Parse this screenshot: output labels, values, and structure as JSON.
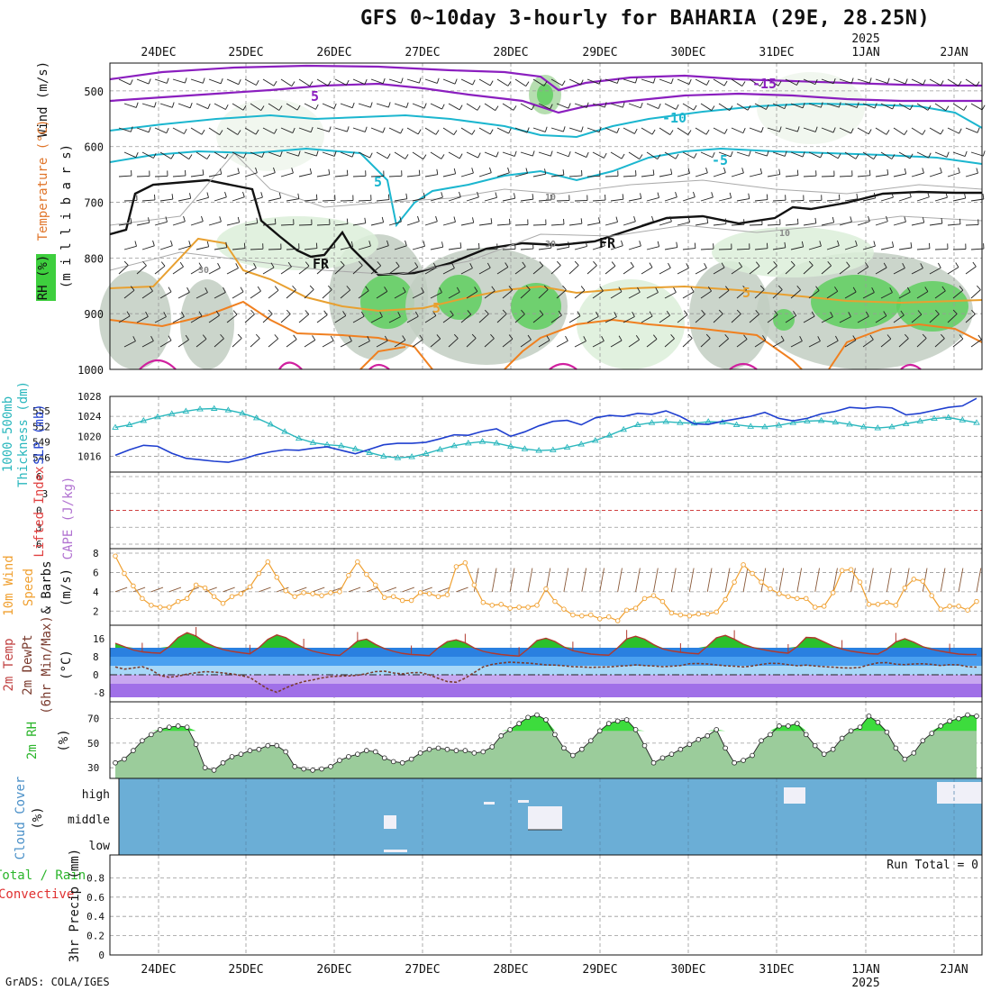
{
  "title": "GFS 0~10day 3-hourly for BAHARIA (29E, 28.25N)",
  "credit": "GrADS: COLA/IGES",
  "date_labels": [
    "24DEC",
    "25DEC",
    "26DEC",
    "27DEC",
    "28DEC",
    "29DEC",
    "30DEC",
    "31DEC",
    "1JAN",
    "2JAN"
  ],
  "year_label": "2025",
  "colors": {
    "rh_green_light": "#dcefd9",
    "rh_green_mid": "#a9d8a2",
    "rh_green_dark": "#5fcf5f",
    "rh_grey": "#c2cec2",
    "thickness": "#2ab7bd",
    "slp": "#1f3fcf",
    "wind_line": "#f0a030",
    "temp_red": "#b03a2e",
    "dewpoint": "#7a3b2e",
    "rh2m_green": "#2bd22b",
    "cloud_blue": "#6baed6",
    "purple": "#8b1fbf",
    "cyan": "#1bb6cf",
    "orange": "#f08020",
    "magenta": "#d0209f"
  },
  "labels": {
    "panel1": {
      "ylabel": "(m i l l i b a r s)",
      "wind": "Wind (m/s)",
      "temp": "Temperature (°C)",
      "rh": "RH (%)"
    },
    "panel2": {
      "thick1": "1000-500mb",
      "thick2": "Thickness (dm)",
      "slp": "SLP (mb)"
    },
    "panel3": {
      "li": "Lifted Index",
      "cape": "CAPE (J/kg)"
    },
    "panel4": {
      "l1": "10m Wind",
      "l2": "Speed",
      "l3": "& Barbs",
      "l4": "(m/s)"
    },
    "panel5": {
      "l1": "2m Temp",
      "l2": "2m DewPt",
      "l3": "(6hr Min/Max)",
      "l4": "(°C)"
    },
    "panel6": {
      "l1": "2m RH",
      "l2": "(%)"
    },
    "panel7": {
      "l1": "Cloud Cover",
      "l2": "(%)"
    },
    "panel8": {
      "l1": "Total / Rain",
      "l2": "Convective",
      "l3": "3hr Precip (mm)",
      "run_total": "Run Total = 0"
    }
  },
  "contour_labels": {
    "minus15": "-15",
    "minus10": "-10",
    "minus5": "-5",
    "minus5b": "-5",
    "five_a": "5",
    "five_b": "5",
    "five_c": "5",
    "fr1": "FR",
    "fr2": "FR",
    "thirty_a": "30",
    "thirty_b": "30",
    "thirty_c": "30",
    "ten_a": "10",
    "ten_b": "10",
    "ten_c": "10",
    "five_d": "5"
  },
  "chart_data": [
    {
      "type": "line",
      "panel": "upper-air cross section",
      "y_ticks": [
        500,
        600,
        700,
        800,
        900,
        1000
      ],
      "ylim": [
        450,
        1000
      ],
      "note_fields": [
        "RH (%)",
        "Temperature (°C)",
        "Wind (m/s)"
      ]
    },
    {
      "type": "line",
      "panel": "thickness and SLP",
      "y_ticks_left": [
        546,
        549,
        552,
        555
      ],
      "y_ticks_right": [
        1016,
        1020,
        1024,
        1028
      ],
      "series": [
        {
          "name": "1000-500mb Thickness (dm)",
          "values": [
            551.8,
            552.3,
            553.1,
            553.8,
            554.4,
            554.9,
            555.3,
            555.4,
            555.1,
            554.5,
            553.6,
            552.4,
            551.0,
            549.7,
            548.9,
            548.5,
            548.3,
            547.7,
            547.0,
            546.3,
            546.0,
            546.2,
            546.8,
            547.6,
            548.3,
            548.8,
            549.1,
            548.8,
            548.2,
            547.7,
            547.4,
            547.5,
            548.0,
            548.6,
            549.3,
            550.3,
            551.4,
            552.3,
            552.7,
            552.9,
            552.7,
            552.6,
            552.9,
            552.8,
            552.3,
            552.0,
            551.9,
            552.2,
            552.7,
            553.0,
            553.1,
            552.8,
            552.4,
            551.9,
            551.7,
            551.9,
            552.5,
            553.0,
            553.5,
            553.7,
            553.2,
            552.7
          ]
        },
        {
          "name": "SLP (mb)",
          "values": [
            1016.2,
            1017.3,
            1018.2,
            1018.0,
            1016.6,
            1015.6,
            1015.3,
            1015.0,
            1014.8,
            1015.4,
            1016.3,
            1016.9,
            1017.3,
            1017.2,
            1017.6,
            1017.9,
            1017.2,
            1016.5,
            1017.4,
            1018.3,
            1018.6,
            1018.6,
            1018.8,
            1019.5,
            1020.3,
            1020.2,
            1021.0,
            1021.5,
            1020.0,
            1020.9,
            1022.1,
            1023.0,
            1023.2,
            1022.3,
            1023.7,
            1024.2,
            1024.0,
            1024.6,
            1024.4,
            1025.1,
            1024.0,
            1022.5,
            1022.4,
            1023.0,
            1023.5,
            1024.0,
            1024.8,
            1023.6,
            1023.1,
            1023.6,
            1024.5,
            1025.0,
            1025.8,
            1025.6,
            1025.9,
            1025.7,
            1024.3,
            1024.6,
            1025.2,
            1025.8,
            1026.1,
            1027.6
          ]
        }
      ]
    },
    {
      "type": "line",
      "panel": "lifted index and CAPE",
      "y_ticks": [
        6,
        3,
        0,
        -3,
        -6
      ],
      "series": [
        {
          "name": "Lifted Index",
          "values": []
        },
        {
          "name": "CAPE (J/kg)",
          "values": []
        }
      ]
    },
    {
      "type": "line",
      "panel": "10m wind",
      "y_ticks": [
        2,
        4,
        6,
        8
      ],
      "series": [
        {
          "name": "10m Wind Speed (m/s)",
          "values": [
            7.7,
            5.9,
            4.6,
            3.3,
            2.6,
            2.4,
            2.4,
            3.0,
            3.3,
            4.7,
            4.4,
            3.5,
            2.8,
            3.5,
            3.8,
            4.5,
            5.9,
            7.1,
            5.5,
            4.1,
            3.5,
            3.9,
            3.8,
            3.6,
            3.9,
            4.0,
            5.7,
            7.1,
            5.8,
            4.7,
            3.4,
            3.5,
            3.1,
            3.1,
            3.9,
            3.8,
            3.5,
            3.7,
            6.6,
            7.0,
            4.7,
            2.9,
            2.6,
            2.7,
            2.3,
            2.4,
            2.4,
            2.6,
            4.3,
            3.0,
            2.2,
            1.6,
            1.5,
            1.6,
            1.2,
            1.4,
            1.0,
            2.1,
            2.3,
            3.3,
            3.6,
            3.0,
            1.8,
            1.6,
            1.5,
            1.7,
            1.7,
            1.9,
            3.2,
            5.0,
            6.8,
            5.9,
            5.0,
            4.3,
            3.8,
            3.5,
            3.3,
            3.3,
            2.4,
            2.5,
            3.9,
            6.2,
            6.3,
            5.0,
            2.7,
            2.7,
            2.9,
            2.6,
            4.4,
            5.3,
            5.1,
            3.6,
            2.2,
            2.5,
            2.5,
            2.1,
            3.0
          ]
        }
      ]
    },
    {
      "type": "area",
      "panel": "2m temperature",
      "y_ticks": [
        -8,
        0,
        8,
        16
      ],
      "series": [
        {
          "name": "2m Temp (°C)",
          "values": [
            14.0,
            12.5,
            11.0,
            10.2,
            9.8,
            9.6,
            12.5,
            16.5,
            18.7,
            17.2,
            14.4,
            12.6,
            11.2,
            10.4,
            9.8,
            9.3,
            12.0,
            15.7,
            17.7,
            16.5,
            14.0,
            12.0,
            10.5,
            9.6,
            8.9,
            8.6,
            11.6,
            15.0,
            15.8,
            13.5,
            11.6,
            10.4,
            9.5,
            9.0,
            8.8,
            8.5,
            12.0,
            14.7,
            15.5,
            14.2,
            11.9,
            10.4,
            9.6,
            9.0,
            8.6,
            8.3,
            11.5,
            15.2,
            16.2,
            14.8,
            12.4,
            10.7,
            9.9,
            9.2,
            8.9,
            8.7,
            12.0,
            15.9,
            17.1,
            15.8,
            13.4,
            11.5,
            10.6,
            10.0,
            9.6,
            9.3,
            12.7,
            16.4,
            17.5,
            15.8,
            13.6,
            12.2,
            11.3,
            10.6,
            10.0,
            9.6,
            12.5,
            16.6,
            16.4,
            14.6,
            12.7,
            11.4,
            10.5,
            9.9,
            9.4,
            9.2,
            11.3,
            14.6,
            16.0,
            14.5,
            12.5,
            11.3,
            10.5,
            9.8,
            9.2,
            9.0,
            9.0
          ]
        },
        {
          "name": "2m DewPt (°C)",
          "values": [
            3.5,
            2.5,
            3.0,
            3.6,
            2.2,
            -0.3,
            -1.1,
            -0.6,
            0.3,
            0.9,
            1.4,
            1.2,
            0.8,
            0.4,
            -0.3,
            -1.2,
            -3.8,
            -6.3,
            -7.8,
            -5.8,
            -4.2,
            -3.0,
            -2.3,
            -1.4,
            -0.8,
            -0.6,
            -0.5,
            -0.2,
            0.5,
            1.4,
            1.6,
            0.8,
            0.4,
            0.9,
            1.0,
            0.0,
            -1.6,
            -3.0,
            -3.3,
            -1.5,
            1.0,
            3.5,
            4.6,
            5.2,
            5.6,
            5.4,
            5.2,
            4.8,
            4.4,
            4.3,
            4.0,
            3.6,
            3.5,
            3.3,
            3.4,
            3.5,
            3.8,
            4.0,
            4.4,
            4.1,
            3.9,
            3.6,
            3.8,
            4.1,
            4.9,
            5.0,
            4.8,
            4.4,
            4.0,
            3.8,
            3.5,
            3.9,
            4.6,
            5.1,
            5.0,
            4.5,
            4.0,
            4.3,
            3.9,
            3.6,
            3.4,
            3.1,
            3.0,
            3.3,
            4.4,
            5.3,
            5.4,
            4.7,
            4.5,
            4.8,
            4.9,
            4.6,
            4.1,
            4.5,
            4.4,
            3.6,
            3.4
          ]
        }
      ]
    },
    {
      "type": "area",
      "panel": "2m relative humidity",
      "y_ticks": [
        30,
        50,
        70
      ],
      "series": [
        {
          "name": "2m RH (%)",
          "values": [
            34,
            37,
            44,
            52,
            57,
            61,
            63,
            64,
            63,
            49,
            30,
            28,
            34,
            39,
            41,
            44,
            45,
            48,
            48,
            43,
            31,
            29,
            28,
            29,
            31,
            36,
            39,
            41,
            44,
            43,
            38,
            35,
            34,
            37,
            42,
            45,
            46,
            45,
            44,
            44,
            42,
            43,
            47,
            56,
            61,
            66,
            71,
            73,
            69,
            57,
            46,
            40,
            45,
            52,
            60,
            66,
            68,
            69,
            61,
            48,
            34,
            38,
            41,
            45,
            49,
            53,
            56,
            61,
            46,
            34,
            36,
            40,
            52,
            57,
            64,
            64,
            66,
            57,
            48,
            41,
            45,
            54,
            60,
            63,
            72,
            67,
            59,
            46,
            37,
            42,
            52,
            58,
            64,
            68,
            70,
            73,
            72
          ]
        }
      ]
    },
    {
      "type": "bar",
      "panel": "cloud cover",
      "y_ticks": [
        "low",
        "middle",
        "high"
      ],
      "series": [
        {
          "name": "Cloud Cover (%)",
          "values": []
        }
      ]
    },
    {
      "type": "bar",
      "panel": "3hr precipitation",
      "y_ticks": [
        0,
        0.2,
        0.4,
        0.6,
        0.8
      ],
      "ylim": [
        0,
        1
      ],
      "series": [
        {
          "name": "3hr Precip (mm)",
          "values": []
        }
      ]
    }
  ]
}
